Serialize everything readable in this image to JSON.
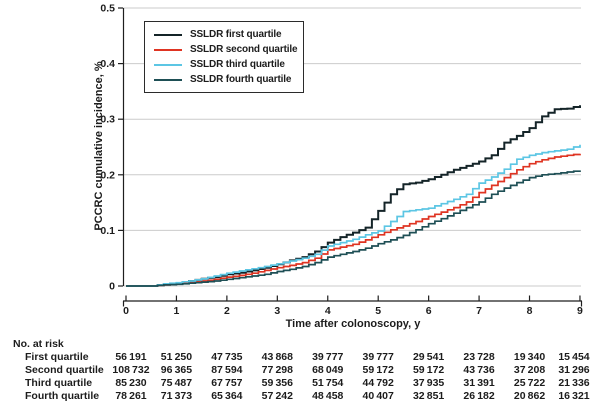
{
  "colors": {
    "background": "#ffffff",
    "gridline": "#cbcbcb",
    "axis": "#1e1e1e",
    "text": "#1c1c1c",
    "first_quartile": "#142428",
    "second_quartile": "#df3422",
    "third_quartile": "#5cc6e4",
    "fourth_quartile": "#1e4f55"
  },
  "axes": {
    "y": {
      "title": "PCCRC cumulative incidence, %",
      "ticks": [
        "0",
        "0.1",
        "0.2",
        "0.3",
        "0.4",
        "0.5"
      ]
    },
    "x": {
      "title": "Time after colonoscopy, y",
      "ticks": [
        "0",
        "1",
        "2",
        "3",
        "4",
        "5",
        "6",
        "7",
        "8",
        "9"
      ]
    }
  },
  "legend": {
    "items": [
      {
        "label": "SSLDR first quartile",
        "color": "#142428"
      },
      {
        "label": "SSLDR second quartile",
        "color": "#df3422"
      },
      {
        "label": "SSLDR third quartile",
        "color": "#5cc6e4"
      },
      {
        "label": "SSLDR fourth quartile",
        "color": "#1e4f55"
      }
    ]
  },
  "chart_data": {
    "type": "line",
    "step": true,
    "title": "",
    "xlabel": "Time after colonoscopy, y",
    "ylabel": "PCCRC cumulative incidence, %",
    "xlim": [
      0,
      9
    ],
    "ylim": [
      0,
      0.5
    ],
    "grid": "horizontal",
    "legend_position": "upper-left-inside",
    "x": [
      0,
      0.25,
      0.5,
      0.75,
      1,
      1.25,
      1.5,
      1.75,
      2,
      2.25,
      2.5,
      2.75,
      3,
      3.25,
      3.5,
      3.75,
      4,
      4.25,
      4.5,
      4.75,
      5,
      5.25,
      5.5,
      5.75,
      6,
      6.25,
      6.5,
      6.75,
      7,
      7.25,
      7.5,
      7.75,
      8,
      8.25,
      8.5,
      8.75,
      9
    ],
    "series": [
      {
        "name": "SSLDR first quartile",
        "color": "#142428",
        "width": 2,
        "values": [
          0,
          0,
          0,
          0.003,
          0.005,
          0.009,
          0.013,
          0.016,
          0.021,
          0.024,
          0.028,
          0.033,
          0.039,
          0.046,
          0.052,
          0.062,
          0.078,
          0.088,
          0.096,
          0.105,
          0.135,
          0.165,
          0.183,
          0.186,
          0.192,
          0.2,
          0.209,
          0.216,
          0.224,
          0.235,
          0.258,
          0.27,
          0.284,
          0.305,
          0.318,
          0.319,
          0.325
        ]
      },
      {
        "name": "SSLDR second quartile",
        "color": "#df3422",
        "width": 1.7,
        "values": [
          0,
          0,
          0,
          0.002,
          0.004,
          0.006,
          0.009,
          0.012,
          0.016,
          0.019,
          0.023,
          0.028,
          0.033,
          0.037,
          0.042,
          0.05,
          0.065,
          0.07,
          0.075,
          0.083,
          0.092,
          0.101,
          0.108,
          0.116,
          0.125,
          0.133,
          0.141,
          0.151,
          0.168,
          0.181,
          0.195,
          0.209,
          0.22,
          0.227,
          0.232,
          0.235,
          0.238
        ]
      },
      {
        "name": "SSLDR third quartile",
        "color": "#5cc6e4",
        "width": 1.7,
        "values": [
          0,
          0,
          0,
          0.004,
          0.006,
          0.009,
          0.013,
          0.018,
          0.023,
          0.027,
          0.031,
          0.035,
          0.04,
          0.045,
          0.05,
          0.057,
          0.072,
          0.078,
          0.084,
          0.092,
          0.099,
          0.116,
          0.134,
          0.137,
          0.14,
          0.148,
          0.156,
          0.165,
          0.185,
          0.196,
          0.21,
          0.228,
          0.235,
          0.24,
          0.243,
          0.246,
          0.254
        ]
      },
      {
        "name": "SSLDR fourth quartile",
        "color": "#1e4f55",
        "width": 1.7,
        "values": [
          0,
          0,
          0,
          0.002,
          0.003,
          0.005,
          0.007,
          0.009,
          0.012,
          0.015,
          0.018,
          0.021,
          0.026,
          0.03,
          0.035,
          0.042,
          0.052,
          0.057,
          0.062,
          0.068,
          0.076,
          0.083,
          0.091,
          0.101,
          0.112,
          0.121,
          0.131,
          0.141,
          0.151,
          0.165,
          0.176,
          0.186,
          0.195,
          0.2,
          0.202,
          0.205,
          0.208
        ]
      }
    ]
  },
  "risk_table": {
    "title": "No. at risk",
    "rows": [
      {
        "label": "First quartile",
        "values": [
          "56 191",
          "51 250",
          "47 735",
          "43 868",
          "39 777",
          "39 777",
          "29 541",
          "23 728",
          "19 340",
          "15 454"
        ]
      },
      {
        "label": "Second quartile",
        "values": [
          "108 732",
          "96 365",
          "87 594",
          "77 298",
          "68 049",
          "59 172",
          "59 172",
          "43 736",
          "37 208",
          "31 296"
        ]
      },
      {
        "label": "Third quartile",
        "values": [
          "85 230",
          "75 487",
          "67 757",
          "59 356",
          "51 754",
          "44 792",
          "37 935",
          "31 391",
          "25 722",
          "21 336"
        ]
      },
      {
        "label": "Fourth quartile",
        "values": [
          "78 261",
          "71 373",
          "65 364",
          "57 242",
          "48 458",
          "40 407",
          "32 851",
          "26 182",
          "20 862",
          "16 321"
        ]
      }
    ]
  }
}
